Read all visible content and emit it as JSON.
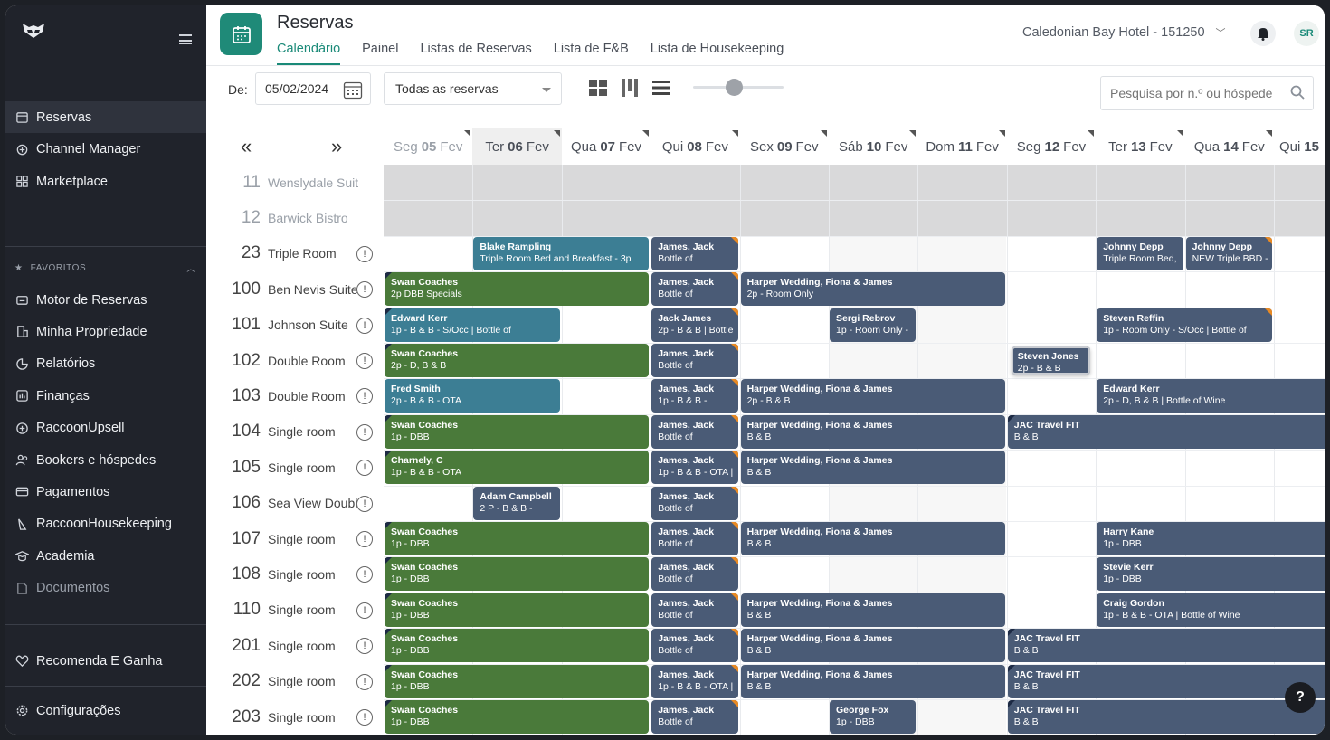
{
  "sidebar": {
    "items": [
      {
        "label": "Reservas",
        "icon": "calendar-icon",
        "active": true
      },
      {
        "label": "Channel Manager",
        "icon": "channel-icon"
      },
      {
        "label": "Marketplace",
        "icon": "grid-icon"
      }
    ],
    "favorites_label": "FAVORITOS",
    "favorites": [
      {
        "label": "Motor de Reservas",
        "icon": "engine-icon"
      },
      {
        "label": "Minha Propriedade",
        "icon": "building-icon"
      },
      {
        "label": "Relatórios",
        "icon": "report-icon"
      },
      {
        "label": "Finanças",
        "icon": "finance-icon"
      },
      {
        "label": "RaccoonUpsell",
        "icon": "plus-circle-icon"
      },
      {
        "label": "Bookers e hóspedes",
        "icon": "users-icon"
      },
      {
        "label": "Pagamentos",
        "icon": "card-icon"
      },
      {
        "label": "RaccoonHousekeeping",
        "icon": "broom-icon"
      },
      {
        "label": "Academia",
        "icon": "academy-icon"
      },
      {
        "label": "Documentos",
        "icon": "document-icon",
        "muted": true
      }
    ],
    "recommend": {
      "label": "Recomenda E Ganha",
      "icon": "heart-icon"
    },
    "settings": {
      "label": "Configurações",
      "icon": "gear-icon"
    }
  },
  "header": {
    "title": "Reservas",
    "tabs": [
      "Calendário",
      "Painel",
      "Listas de Reservas",
      "Lista de F&B",
      "Lista de Housekeeping"
    ],
    "active_tab": 0,
    "hotel": "Caledonian Bay Hotel - 151250",
    "avatar": "SR"
  },
  "toolbar": {
    "from_label": "De:",
    "date": "05/02/2024",
    "filter": "Todas as reservas",
    "search_placeholder": "Pesquisa por n.º ou hóspede",
    "zoom": 0.45
  },
  "calendar": {
    "prev": "«",
    "next": "»",
    "days": [
      {
        "dow": "Seg",
        "num": "05",
        "mon": "Fev",
        "past": true
      },
      {
        "dow": "Ter",
        "num": "06",
        "mon": "Fev",
        "today": true
      },
      {
        "dow": "Qua",
        "num": "07",
        "mon": "Fev"
      },
      {
        "dow": "Qui",
        "num": "08",
        "mon": "Fev"
      },
      {
        "dow": "Sex",
        "num": "09",
        "mon": "Fev"
      },
      {
        "dow": "Sáb",
        "num": "10",
        "mon": "Fev"
      },
      {
        "dow": "Dom",
        "num": "11",
        "mon": "Fev"
      },
      {
        "dow": "Seg",
        "num": "12",
        "mon": "Fev"
      },
      {
        "dow": "Ter",
        "num": "13",
        "mon": "Fev"
      },
      {
        "dow": "Qua",
        "num": "14",
        "mon": "Fev"
      },
      {
        "dow": "Qui",
        "num": "15",
        "mon": ""
      }
    ],
    "rooms": [
      {
        "num": "11",
        "name": "Wenslydale Suite",
        "blocked": true
      },
      {
        "num": "12",
        "name": "Barwick Bistro",
        "blocked": true
      },
      {
        "num": "23",
        "name": "Triple Room"
      },
      {
        "num": "100",
        "name": "Ben Nevis Suite"
      },
      {
        "num": "101",
        "name": "Johnson Suite"
      },
      {
        "num": "102",
        "name": "Double Room"
      },
      {
        "num": "103",
        "name": "Double Room"
      },
      {
        "num": "104",
        "name": "Single room"
      },
      {
        "num": "105",
        "name": "Single room"
      },
      {
        "num": "106",
        "name": "Sea View Double"
      },
      {
        "num": "107",
        "name": "Single room"
      },
      {
        "num": "108",
        "name": "Single room"
      },
      {
        "num": "110",
        "name": "Single room"
      },
      {
        "num": "201",
        "name": "Single room"
      },
      {
        "num": "202",
        "name": "Single room"
      },
      {
        "num": "203",
        "name": "Single room"
      }
    ],
    "info_glyph": "!",
    "bookings": [
      {
        "row": 2,
        "start": 1,
        "len": 2,
        "guest": "Blake Rampling",
        "sub": "Triple Room Bed and Breakfast - 3p",
        "color": "teal"
      },
      {
        "row": 2,
        "start": 3,
        "len": 1,
        "guest": "James, Jack",
        "sub": "Bottle of",
        "color": "navy",
        "flag": true
      },
      {
        "row": 2,
        "start": 8,
        "len": 1,
        "guest": "Johnny Depp",
        "sub": "Triple Room Bed,",
        "color": "navy"
      },
      {
        "row": 2,
        "start": 9,
        "len": 1,
        "guest": "Johnny Depp",
        "sub": "NEW Triple BBD -",
        "color": "navy",
        "flag": true
      },
      {
        "row": 3,
        "start": 0,
        "len": 3,
        "guest": "Swan Coaches",
        "sub": "2p DBB Specials",
        "color": "green",
        "cont": true
      },
      {
        "row": 3,
        "start": 3,
        "len": 1,
        "guest": "James, Jack",
        "sub": "Bottle of",
        "color": "navy",
        "flag": true
      },
      {
        "row": 3,
        "start": 4,
        "len": 3,
        "guest": "Harper Wedding, Fiona & James",
        "sub": "2p - Room Only",
        "color": "navy"
      },
      {
        "row": 4,
        "start": 0,
        "len": 2,
        "guest": "Edward Kerr",
        "sub": "1p - B & B - S/Occ | Bottle of",
        "color": "teal",
        "cont": true
      },
      {
        "row": 4,
        "start": 3,
        "len": 1,
        "guest": "Jack James",
        "sub": "2p - B & B | Bottle",
        "color": "navy",
        "flag": true
      },
      {
        "row": 4,
        "start": 5,
        "len": 1,
        "guest": "Sergi Rebrov",
        "sub": "1p - Room Only -",
        "color": "navy"
      },
      {
        "row": 4,
        "start": 8,
        "len": 2,
        "guest": "Steven Reffin",
        "sub": "1p - Room Only - S/Occ | Bottle of",
        "color": "navy",
        "flag": true
      },
      {
        "row": 5,
        "start": 0,
        "len": 3,
        "guest": "Swan Coaches",
        "sub": "2p - D, B & B",
        "color": "green",
        "cont": true
      },
      {
        "row": 5,
        "start": 3,
        "len": 1,
        "guest": "James, Jack",
        "sub": "Bottle of",
        "color": "navy",
        "flag": true
      },
      {
        "row": 5,
        "start": 7,
        "len": 1,
        "guest": "Steven Jones",
        "sub": "2p - B & B",
        "color": "navy",
        "sel": true
      },
      {
        "row": 6,
        "start": 0,
        "len": 2,
        "guest": "Fred Smith",
        "sub": "2p - B & B - OTA",
        "color": "teal"
      },
      {
        "row": 6,
        "start": 3,
        "len": 1,
        "guest": "James, Jack",
        "sub": "1p - B & B -",
        "color": "navy",
        "flag": true
      },
      {
        "row": 6,
        "start": 4,
        "len": 3,
        "guest": "Harper Wedding, Fiona & James",
        "sub": "2p - B & B",
        "color": "navy"
      },
      {
        "row": 6,
        "start": 8,
        "len": 3,
        "guest": "Edward Kerr",
        "sub": "2p - D, B & B | Bottle of Wine",
        "color": "navy"
      },
      {
        "row": 7,
        "start": 0,
        "len": 3,
        "guest": "Swan Coaches",
        "sub": "1p - DBB",
        "color": "green",
        "cont": true
      },
      {
        "row": 7,
        "start": 3,
        "len": 1,
        "guest": "James, Jack",
        "sub": "Bottle of",
        "color": "navy",
        "flag": true
      },
      {
        "row": 7,
        "start": 4,
        "len": 3,
        "guest": "Harper Wedding, Fiona & James",
        "sub": "B & B",
        "color": "navy"
      },
      {
        "row": 7,
        "start": 7,
        "len": 4,
        "guest": "JAC Travel FIT",
        "sub": "B & B",
        "color": "navy",
        "cont": true
      },
      {
        "row": 8,
        "start": 0,
        "len": 3,
        "guest": "Charnely, C",
        "sub": "1p - B & B - OTA",
        "color": "green",
        "cont": true
      },
      {
        "row": 8,
        "start": 3,
        "len": 1,
        "guest": "James, Jack",
        "sub": "1p - B & B - OTA |",
        "color": "navy",
        "flag": true
      },
      {
        "row": 8,
        "start": 4,
        "len": 3,
        "guest": "Harper Wedding, Fiona & James",
        "sub": "B & B",
        "color": "navy"
      },
      {
        "row": 9,
        "start": 1,
        "len": 1,
        "guest": "Adam Campbell",
        "sub": "2 P - B & B -",
        "color": "navy"
      },
      {
        "row": 9,
        "start": 3,
        "len": 1,
        "guest": "James, Jack",
        "sub": "Bottle of",
        "color": "navy",
        "flag": true
      },
      {
        "row": 10,
        "start": 0,
        "len": 3,
        "guest": "Swan Coaches",
        "sub": "1p - DBB",
        "color": "green",
        "cont": true
      },
      {
        "row": 10,
        "start": 3,
        "len": 1,
        "guest": "James, Jack",
        "sub": "Bottle of",
        "color": "navy",
        "flag": true
      },
      {
        "row": 10,
        "start": 4,
        "len": 3,
        "guest": "Harper Wedding, Fiona & James",
        "sub": "B & B",
        "color": "navy"
      },
      {
        "row": 10,
        "start": 8,
        "len": 3,
        "guest": "Harry Kane",
        "sub": "1p - DBB",
        "color": "navy"
      },
      {
        "row": 11,
        "start": 0,
        "len": 3,
        "guest": "Swan Coaches",
        "sub": "1p - DBB",
        "color": "green",
        "cont": true
      },
      {
        "row": 11,
        "start": 3,
        "len": 1,
        "guest": "James, Jack",
        "sub": "Bottle of",
        "color": "navy",
        "flag": true
      },
      {
        "row": 11,
        "start": 8,
        "len": 3,
        "guest": "Stevie Kerr",
        "sub": "1p - DBB",
        "color": "navy"
      },
      {
        "row": 12,
        "start": 0,
        "len": 3,
        "guest": "Swan Coaches",
        "sub": "1p - DBB",
        "color": "green",
        "cont": true
      },
      {
        "row": 12,
        "start": 3,
        "len": 1,
        "guest": "James, Jack",
        "sub": "Bottle of",
        "color": "navy",
        "flag": true
      },
      {
        "row": 12,
        "start": 4,
        "len": 3,
        "guest": "Harper Wedding, Fiona & James",
        "sub": "B & B",
        "color": "navy"
      },
      {
        "row": 12,
        "start": 8,
        "len": 3,
        "guest": "Craig Gordon",
        "sub": "1p - B & B - OTA | Bottle of Wine",
        "color": "navy"
      },
      {
        "row": 13,
        "start": 0,
        "len": 3,
        "guest": "Swan Coaches",
        "sub": "1p - DBB",
        "color": "green",
        "cont": true
      },
      {
        "row": 13,
        "start": 3,
        "len": 1,
        "guest": "James, Jack",
        "sub": "Bottle of",
        "color": "navy",
        "flag": true
      },
      {
        "row": 13,
        "start": 4,
        "len": 3,
        "guest": "Harper Wedding, Fiona & James",
        "sub": "B & B",
        "color": "navy"
      },
      {
        "row": 13,
        "start": 7,
        "len": 4,
        "guest": "JAC Travel FIT",
        "sub": "B & B",
        "color": "navy",
        "cont": true
      },
      {
        "row": 14,
        "start": 0,
        "len": 3,
        "guest": "Swan Coaches",
        "sub": "1p - DBB",
        "color": "green",
        "cont": true
      },
      {
        "row": 14,
        "start": 3,
        "len": 1,
        "guest": "James, Jack",
        "sub": "1p - B & B - OTA |",
        "color": "navy",
        "flag": true
      },
      {
        "row": 14,
        "start": 4,
        "len": 3,
        "guest": "Harper Wedding, Fiona & James",
        "sub": "B & B",
        "color": "navy"
      },
      {
        "row": 14,
        "start": 7,
        "len": 4,
        "guest": "JAC Travel FIT",
        "sub": "B & B",
        "color": "navy",
        "cont": true
      },
      {
        "row": 15,
        "start": 0,
        "len": 3,
        "guest": "Swan Coaches",
        "sub": "1p - DBB",
        "color": "green",
        "cont": true
      },
      {
        "row": 15,
        "start": 3,
        "len": 1,
        "guest": "James, Jack",
        "sub": "Bottle of",
        "color": "navy",
        "flag": true
      },
      {
        "row": 15,
        "start": 5,
        "len": 1,
        "guest": "George Fox",
        "sub": "1p - DBB",
        "color": "navy"
      },
      {
        "row": 15,
        "start": 7,
        "len": 4,
        "guest": "JAC Travel FIT",
        "sub": "B & B",
        "color": "navy",
        "cont": true
      }
    ]
  },
  "help": "?"
}
